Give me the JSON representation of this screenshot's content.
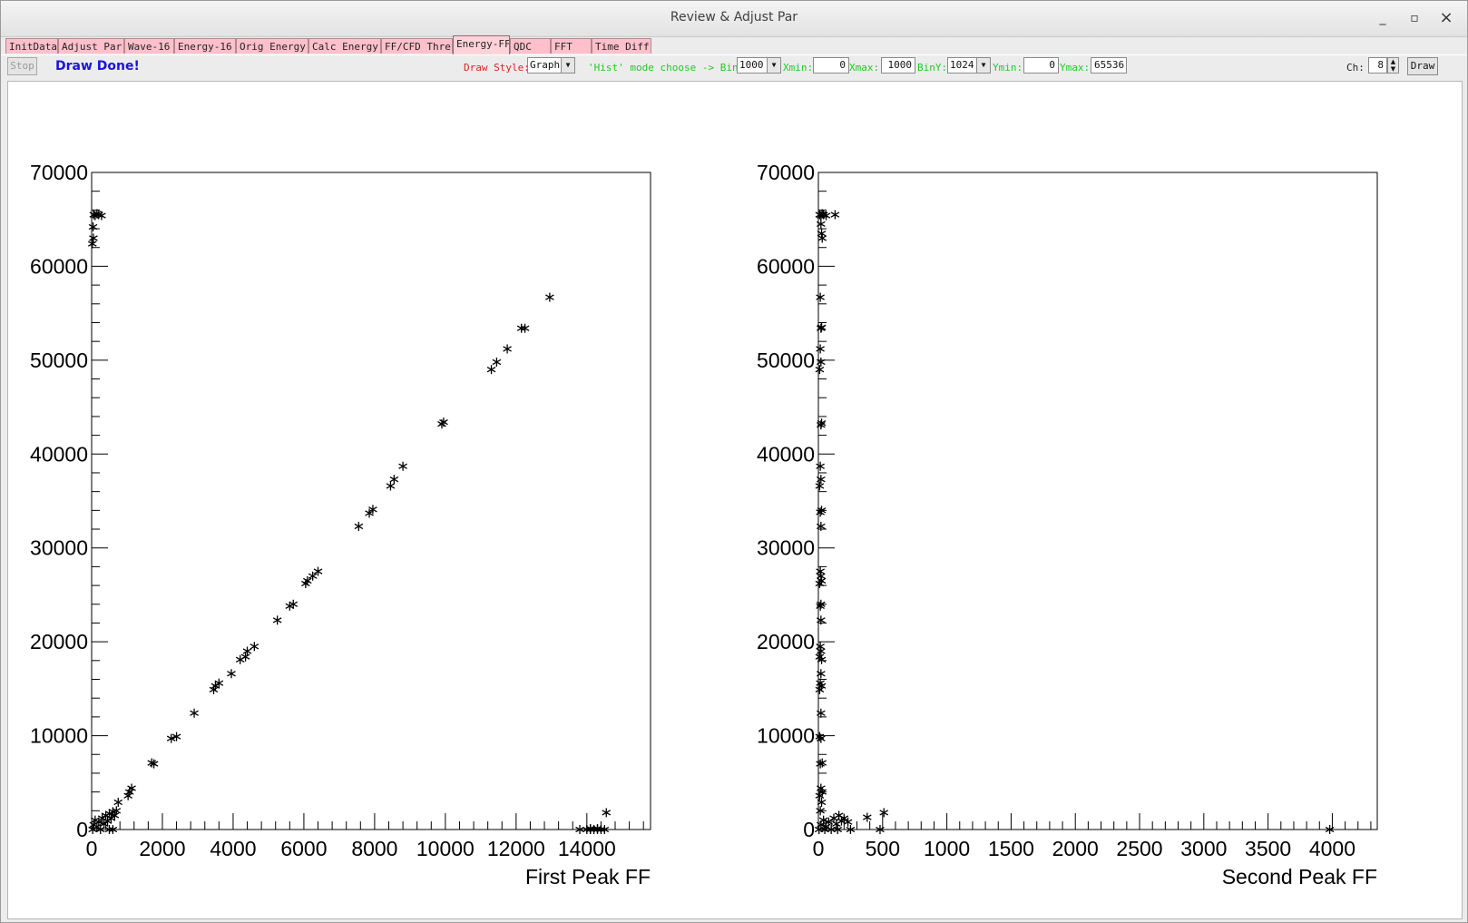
{
  "window": {
    "title": "Review & Adjust Par",
    "minimize_glyph": "_",
    "maximize_glyph": "▫",
    "close_glyph": "×"
  },
  "tabs": [
    {
      "label": "InitData",
      "active": false
    },
    {
      "label": "Adjust Par",
      "active": false
    },
    {
      "label": "Wave-16",
      "active": false
    },
    {
      "label": "Energy-16",
      "active": false
    },
    {
      "label": "Orig Energy",
      "active": false
    },
    {
      "label": "Calc Energy",
      "active": false
    },
    {
      "label": "FF/CFD Thre",
      "active": false
    },
    {
      "label": "Energy-FF",
      "active": true
    },
    {
      "label": "QDC",
      "active": false
    },
    {
      "label": "FFT",
      "active": false
    },
    {
      "label": "Time Diff",
      "active": false
    }
  ],
  "toolbar": {
    "stop_label": "Stop",
    "status_text": "Draw Done!",
    "draw_style_label": "Draw Style:",
    "draw_style_value": "Graph",
    "hist_mode_label": "'Hist' mode choose -> BinX:",
    "binx_value": "1000",
    "xmin_label": "Xmin:",
    "xmin_value": "0",
    "xmax_label": "Xmax:",
    "xmax_value": "1000",
    "biny_label": "BinY:",
    "biny_value": "1024",
    "ymin_label": "Ymin:",
    "ymin_value": "0",
    "ymax_label": "Ymax:",
    "ymax_value": "65536",
    "ch_label": "Ch:",
    "ch_value": "8",
    "draw_label": "Draw"
  },
  "colors": {
    "tab_bg": "#ffc0cb",
    "status_blue": "#1c14d8",
    "label_red": "#e02020",
    "label_green": "#1ecb1e",
    "marker": "#000000"
  },
  "chart_data": [
    {
      "type": "scatter",
      "marker": "asterisk",
      "xlabel": "First Peak FF",
      "ylabel": "",
      "title": "",
      "xlim": [
        0,
        15800
      ],
      "ylim": [
        0,
        70000
      ],
      "x_ticks": [
        0,
        2000,
        4000,
        6000,
        8000,
        10000,
        12000,
        14000
      ],
      "y_ticks": [
        0,
        10000,
        20000,
        30000,
        40000,
        50000,
        60000,
        70000
      ],
      "x_tick_labels": [
        "0",
        "2000",
        "4000",
        "6000",
        "8000",
        "10000",
        "12000",
        "14000"
      ],
      "y_tick_labels": [
        "0",
        "10000",
        "20000",
        "30000",
        "40000",
        "50000",
        "60000",
        "70000"
      ],
      "points": [
        [
          60,
          65500
        ],
        [
          100,
          65400
        ],
        [
          150,
          65600
        ],
        [
          200,
          65500
        ],
        [
          280,
          65400
        ],
        [
          40,
          64200
        ],
        [
          50,
          63000
        ],
        [
          20,
          62400
        ],
        [
          30,
          0
        ],
        [
          60,
          500
        ],
        [
          100,
          1000
        ],
        [
          150,
          300
        ],
        [
          200,
          800
        ],
        [
          250,
          0
        ],
        [
          300,
          1200
        ],
        [
          350,
          600
        ],
        [
          400,
          1500
        ],
        [
          450,
          900
        ],
        [
          500,
          1700
        ],
        [
          550,
          1200
        ],
        [
          600,
          1900
        ],
        [
          650,
          1500
        ],
        [
          700,
          2000
        ],
        [
          750,
          2900
        ],
        [
          500,
          0
        ],
        [
          600,
          0
        ],
        [
          1030,
          3600
        ],
        [
          1070,
          4000
        ],
        [
          1130,
          4400
        ],
        [
          1700,
          7100
        ],
        [
          1760,
          7000
        ],
        [
          2250,
          9700
        ],
        [
          2400,
          9900
        ],
        [
          2900,
          12400
        ],
        [
          3450,
          14900
        ],
        [
          3500,
          15300
        ],
        [
          3600,
          15600
        ],
        [
          3950,
          16600
        ],
        [
          4200,
          18100
        ],
        [
          4350,
          18400
        ],
        [
          4400,
          19000
        ],
        [
          4600,
          19500
        ],
        [
          5250,
          22300
        ],
        [
          5600,
          23800
        ],
        [
          5700,
          24000
        ],
        [
          6050,
          26200
        ],
        [
          6100,
          26500
        ],
        [
          6250,
          27000
        ],
        [
          6400,
          27500
        ],
        [
          7550,
          32300
        ],
        [
          7850,
          33700
        ],
        [
          7950,
          34100
        ],
        [
          8450,
          36600
        ],
        [
          8550,
          37300
        ],
        [
          8800,
          38700
        ],
        [
          9900,
          43200
        ],
        [
          9950,
          43400
        ],
        [
          11300,
          49000
        ],
        [
          11450,
          49800
        ],
        [
          11750,
          51200
        ],
        [
          12150,
          53400
        ],
        [
          12250,
          53400
        ],
        [
          12950,
          56700
        ],
        [
          13800,
          0
        ],
        [
          14000,
          0
        ],
        [
          14100,
          0
        ],
        [
          14200,
          0
        ],
        [
          14300,
          0
        ],
        [
          14400,
          0
        ],
        [
          14500,
          0
        ],
        [
          14100,
          100
        ],
        [
          14300,
          100
        ],
        [
          14550,
          1800
        ]
      ]
    },
    {
      "type": "scatter",
      "marker": "asterisk",
      "xlabel": "Second Peak FF",
      "ylabel": "",
      "title": "",
      "xlim": [
        0,
        4350
      ],
      "ylim": [
        0,
        70000
      ],
      "x_ticks": [
        0,
        500,
        1000,
        1500,
        2000,
        2500,
        3000,
        3500,
        4000
      ],
      "y_ticks": [
        0,
        10000,
        20000,
        30000,
        40000,
        50000,
        60000,
        70000
      ],
      "x_tick_labels": [
        "0",
        "500",
        "1000",
        "1500",
        "2000",
        "2500",
        "3000",
        "3500",
        "4000"
      ],
      "y_tick_labels": [
        "0",
        "10000",
        "20000",
        "30000",
        "40000",
        "50000",
        "60000",
        "70000"
      ],
      "points": [
        [
          10,
          65500
        ],
        [
          20,
          65400
        ],
        [
          30,
          65600
        ],
        [
          40,
          65500
        ],
        [
          60,
          65400
        ],
        [
          130,
          65500
        ],
        [
          20,
          64500
        ],
        [
          25,
          63500
        ],
        [
          30,
          63000
        ],
        [
          15,
          56700
        ],
        [
          20,
          53400
        ],
        [
          25,
          53500
        ],
        [
          15,
          51200
        ],
        [
          20,
          49800
        ],
        [
          10,
          49000
        ],
        [
          25,
          43300
        ],
        [
          20,
          43100
        ],
        [
          15,
          38700
        ],
        [
          20,
          37300
        ],
        [
          10,
          36600
        ],
        [
          25,
          34000
        ],
        [
          15,
          33800
        ],
        [
          20,
          32300
        ],
        [
          15,
          27500
        ],
        [
          20,
          27000
        ],
        [
          25,
          26500
        ],
        [
          10,
          26200
        ],
        [
          20,
          24000
        ],
        [
          15,
          23800
        ],
        [
          20,
          22300
        ],
        [
          15,
          19500
        ],
        [
          20,
          19000
        ],
        [
          10,
          18400
        ],
        [
          25,
          18100
        ],
        [
          20,
          16600
        ],
        [
          15,
          15600
        ],
        [
          25,
          15300
        ],
        [
          10,
          14900
        ],
        [
          20,
          12400
        ],
        [
          10,
          9900
        ],
        [
          20,
          9700
        ],
        [
          30,
          7100
        ],
        [
          15,
          7000
        ],
        [
          20,
          4400
        ],
        [
          30,
          4000
        ],
        [
          10,
          3600
        ],
        [
          25,
          2900
        ],
        [
          15,
          2000
        ],
        [
          5,
          0
        ],
        [
          20,
          500
        ],
        [
          40,
          1000
        ],
        [
          60,
          300
        ],
        [
          80,
          800
        ],
        [
          100,
          0
        ],
        [
          120,
          1200
        ],
        [
          140,
          600
        ],
        [
          160,
          1500
        ],
        [
          180,
          900
        ],
        [
          200,
          1200
        ],
        [
          230,
          800
        ],
        [
          250,
          0
        ],
        [
          150,
          0
        ],
        [
          50,
          0
        ],
        [
          380,
          1300
        ],
        [
          480,
          0
        ],
        [
          510,
          1800
        ],
        [
          3980,
          0
        ]
      ]
    }
  ]
}
